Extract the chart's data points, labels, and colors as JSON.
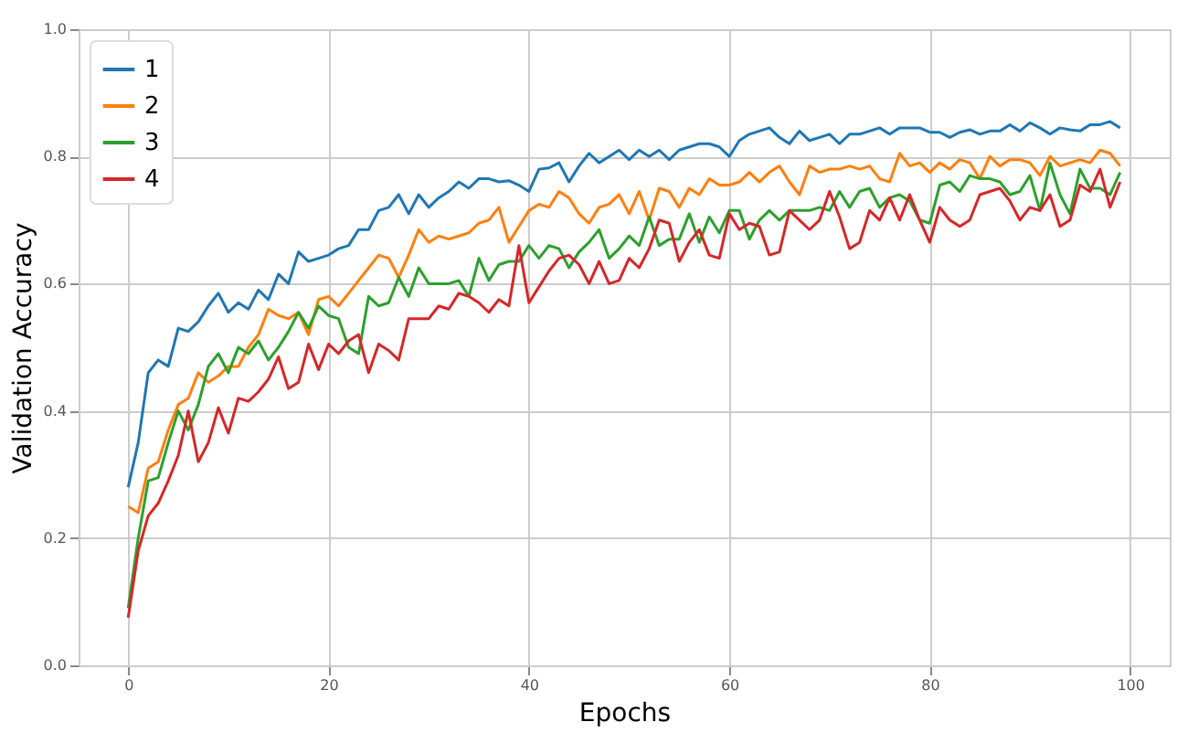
{
  "chart_data": {
    "type": "line",
    "xlabel": "Epochs",
    "ylabel": "Validation Accuracy",
    "x": [
      0,
      1,
      2,
      3,
      4,
      5,
      6,
      7,
      8,
      9,
      10,
      11,
      12,
      13,
      14,
      15,
      16,
      17,
      18,
      19,
      20,
      21,
      22,
      23,
      24,
      25,
      26,
      27,
      28,
      29,
      30,
      31,
      32,
      33,
      34,
      35,
      36,
      37,
      38,
      39,
      40,
      41,
      42,
      43,
      44,
      45,
      46,
      47,
      48,
      49,
      50,
      51,
      52,
      53,
      54,
      55,
      56,
      57,
      58,
      59,
      60,
      61,
      62,
      63,
      64,
      65,
      66,
      67,
      68,
      69,
      70,
      71,
      72,
      73,
      74,
      75,
      76,
      77,
      78,
      79,
      80,
      81,
      82,
      83,
      84,
      85,
      86,
      87,
      88,
      89,
      90,
      91,
      92,
      93,
      94,
      95,
      96,
      97,
      98,
      99
    ],
    "series": [
      {
        "name": "1",
        "color": "#1f77b4",
        "values": [
          0.28,
          0.35,
          0.46,
          0.48,
          0.47,
          0.53,
          0.525,
          0.54,
          0.565,
          0.585,
          0.555,
          0.57,
          0.56,
          0.59,
          0.575,
          0.615,
          0.6,
          0.65,
          0.635,
          0.64,
          0.645,
          0.655,
          0.66,
          0.685,
          0.685,
          0.715,
          0.72,
          0.74,
          0.71,
          0.74,
          0.72,
          0.735,
          0.745,
          0.76,
          0.75,
          0.765,
          0.765,
          0.76,
          0.762,
          0.755,
          0.745,
          0.78,
          0.782,
          0.79,
          0.76,
          0.785,
          0.805,
          0.79,
          0.8,
          0.81,
          0.795,
          0.81,
          0.8,
          0.81,
          0.795,
          0.81,
          0.815,
          0.82,
          0.82,
          0.815,
          0.8,
          0.825,
          0.835,
          0.84,
          0.845,
          0.83,
          0.82,
          0.84,
          0.825,
          0.83,
          0.835,
          0.82,
          0.835,
          0.835,
          0.84,
          0.845,
          0.835,
          0.845,
          0.845,
          0.845,
          0.838,
          0.838,
          0.83,
          0.838,
          0.842,
          0.835,
          0.84,
          0.84,
          0.85,
          0.84,
          0.853,
          0.845,
          0.835,
          0.845,
          0.842,
          0.84,
          0.85,
          0.85,
          0.855,
          0.845
        ]
      },
      {
        "name": "2",
        "color": "#ff7f0e",
        "values": [
          0.25,
          0.24,
          0.31,
          0.32,
          0.37,
          0.41,
          0.42,
          0.46,
          0.445,
          0.455,
          0.47,
          0.47,
          0.5,
          0.52,
          0.56,
          0.55,
          0.545,
          0.555,
          0.52,
          0.575,
          0.58,
          0.565,
          0.585,
          0.605,
          0.625,
          0.645,
          0.64,
          0.61,
          0.645,
          0.685,
          0.665,
          0.675,
          0.67,
          0.675,
          0.68,
          0.695,
          0.7,
          0.72,
          0.665,
          0.69,
          0.715,
          0.725,
          0.72,
          0.745,
          0.735,
          0.71,
          0.695,
          0.72,
          0.725,
          0.74,
          0.71,
          0.745,
          0.7,
          0.75,
          0.745,
          0.72,
          0.75,
          0.74,
          0.765,
          0.755,
          0.755,
          0.76,
          0.775,
          0.76,
          0.775,
          0.785,
          0.76,
          0.74,
          0.785,
          0.775,
          0.78,
          0.78,
          0.785,
          0.78,
          0.785,
          0.765,
          0.76,
          0.805,
          0.785,
          0.79,
          0.775,
          0.79,
          0.78,
          0.795,
          0.79,
          0.765,
          0.8,
          0.785,
          0.795,
          0.795,
          0.79,
          0.77,
          0.8,
          0.785,
          0.79,
          0.795,
          0.79,
          0.81,
          0.805,
          0.785
        ]
      },
      {
        "name": "3",
        "color": "#2ca02c",
        "values": [
          0.09,
          0.2,
          0.29,
          0.295,
          0.35,
          0.4,
          0.37,
          0.41,
          0.47,
          0.49,
          0.46,
          0.5,
          0.49,
          0.51,
          0.48,
          0.5,
          0.525,
          0.555,
          0.53,
          0.565,
          0.55,
          0.545,
          0.5,
          0.49,
          0.58,
          0.565,
          0.57,
          0.61,
          0.58,
          0.625,
          0.6,
          0.6,
          0.6,
          0.605,
          0.58,
          0.64,
          0.605,
          0.63,
          0.635,
          0.635,
          0.66,
          0.64,
          0.66,
          0.655,
          0.625,
          0.65,
          0.665,
          0.685,
          0.64,
          0.655,
          0.675,
          0.66,
          0.705,
          0.66,
          0.67,
          0.67,
          0.71,
          0.665,
          0.705,
          0.68,
          0.715,
          0.715,
          0.67,
          0.7,
          0.715,
          0.7,
          0.715,
          0.715,
          0.715,
          0.72,
          0.715,
          0.745,
          0.72,
          0.745,
          0.75,
          0.72,
          0.735,
          0.74,
          0.73,
          0.7,
          0.695,
          0.755,
          0.76,
          0.745,
          0.77,
          0.765,
          0.765,
          0.76,
          0.74,
          0.745,
          0.77,
          0.715,
          0.79,
          0.74,
          0.71,
          0.78,
          0.75,
          0.75,
          0.74,
          0.775
        ]
      },
      {
        "name": "4",
        "color": "#d62728",
        "values": [
          0.075,
          0.18,
          0.235,
          0.255,
          0.29,
          0.33,
          0.4,
          0.32,
          0.35,
          0.405,
          0.365,
          0.42,
          0.415,
          0.43,
          0.45,
          0.485,
          0.435,
          0.445,
          0.505,
          0.465,
          0.505,
          0.49,
          0.51,
          0.52,
          0.46,
          0.505,
          0.495,
          0.48,
          0.545,
          0.545,
          0.545,
          0.565,
          0.56,
          0.585,
          0.58,
          0.57,
          0.555,
          0.575,
          0.565,
          0.66,
          0.57,
          0.595,
          0.62,
          0.64,
          0.645,
          0.63,
          0.6,
          0.635,
          0.6,
          0.605,
          0.64,
          0.625,
          0.655,
          0.7,
          0.695,
          0.635,
          0.665,
          0.685,
          0.645,
          0.64,
          0.71,
          0.685,
          0.695,
          0.69,
          0.645,
          0.65,
          0.715,
          0.7,
          0.685,
          0.7,
          0.745,
          0.705,
          0.655,
          0.665,
          0.715,
          0.7,
          0.735,
          0.7,
          0.74,
          0.7,
          0.665,
          0.72,
          0.7,
          0.69,
          0.7,
          0.74,
          0.745,
          0.75,
          0.73,
          0.7,
          0.72,
          0.715,
          0.74,
          0.69,
          0.7,
          0.755,
          0.745,
          0.78,
          0.72,
          0.76
        ]
      }
    ],
    "xlim": [
      -4.95,
      103.95
    ],
    "ylim": [
      0,
      1
    ],
    "xticks": [
      0,
      20,
      40,
      60,
      80,
      100
    ],
    "yticks": [
      {
        "value": 0,
        "label": "0.0"
      },
      0.2,
      0.4,
      0.6,
      0.8,
      {
        "value": 1,
        "label": "1.0"
      }
    ],
    "grid": true,
    "legend": "top left",
    "marker": "none",
    "line_style": "solid"
  }
}
